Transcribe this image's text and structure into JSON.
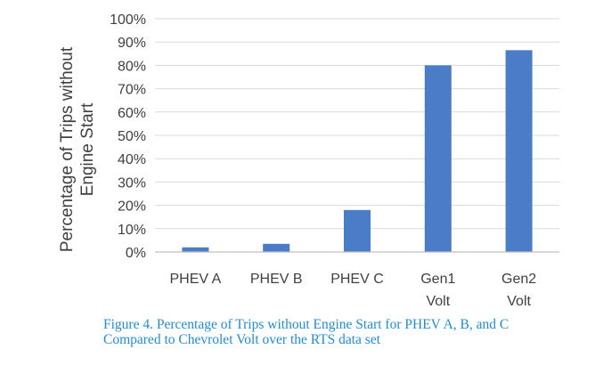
{
  "chart_data": {
    "type": "bar",
    "categories": [
      [
        "PHEV A"
      ],
      [
        "PHEV B"
      ],
      [
        "PHEV C"
      ],
      [
        "Gen1",
        "Volt"
      ],
      [
        "Gen2",
        "Volt"
      ]
    ],
    "values": [
      2,
      3.5,
      18,
      80,
      86.5
    ],
    "ylabel": [
      "Percentage of Trips without",
      "Engine Start"
    ],
    "ylim": [
      0,
      100
    ],
    "yticks": [
      0,
      10,
      20,
      30,
      40,
      50,
      60,
      70,
      80,
      90,
      100
    ],
    "ytick_labels": [
      "0%",
      "10%",
      "20%",
      "30%",
      "40%",
      "50%",
      "60%",
      "70%",
      "80%",
      "90%",
      "100%"
    ],
    "grid": true,
    "legend": "none",
    "bar_color": "#4a7cc7",
    "grid_color": "#d9d9d9",
    "axis_color": "#bfbfbf"
  },
  "caption": {
    "line1": "Figure 4. Percentage of Trips without Engine Start for PHEV A, B, and C",
    "line2": "Compared to Chevrolet Volt over the RTS data set",
    "color": "#1f8dd6"
  }
}
